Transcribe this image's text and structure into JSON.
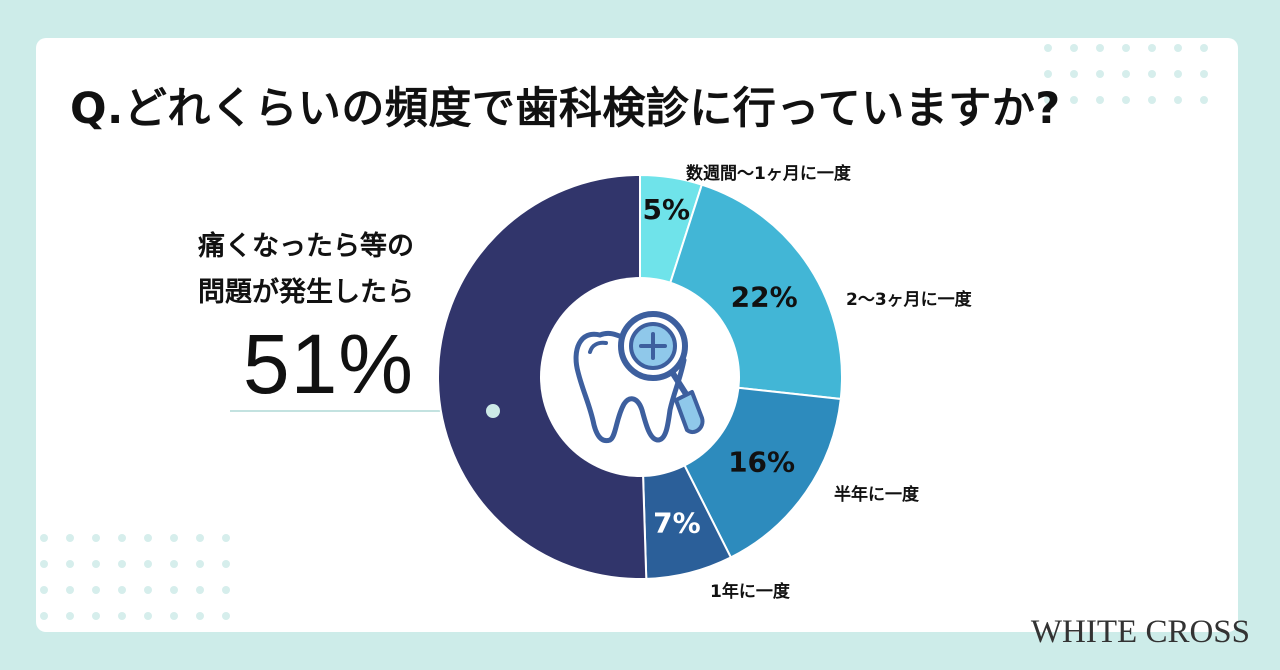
{
  "title": "Q.どれくらいの頻度で歯科検診に行っていますか?",
  "callout": {
    "line1": "痛くなったら等の",
    "line2": "問題が発生したら",
    "value": "51%"
  },
  "logo": "WHITE CROSS",
  "center_icon": "tooth-magnifier-icon",
  "colors": {
    "background": "#cdece9",
    "card": "#ffffff",
    "slice_dark": "#31356b",
    "slice_cyan": "#6fe3ea",
    "slice_light_blue": "#42b6d6",
    "slice_mid_blue": "#2d8bbd",
    "slice_navy_blue": "#2b5f99"
  },
  "chart_data": {
    "type": "pie",
    "title": "Q.どれくらいの頻度で歯科検診に行っていますか?",
    "slices": [
      {
        "label": "数週間〜1ヶ月に一度",
        "value": 5,
        "value_label": "5%",
        "color": "#6fe3ea",
        "text_color": "#111111"
      },
      {
        "label": "2〜3ヶ月に一度",
        "value": 22,
        "value_label": "22%",
        "color": "#42b6d6",
        "text_color": "#111111"
      },
      {
        "label": "半年に一度",
        "value": 16,
        "value_label": "16%",
        "color": "#2d8bbd",
        "text_color": "#111111"
      },
      {
        "label": "1年に一度",
        "value": 7,
        "value_label": "7%",
        "color": "#2b5f99",
        "text_color": "#ffffff"
      },
      {
        "label": "痛くなったら等の問題が発生したら",
        "value": 51,
        "value_label": "51%",
        "color": "#31356b",
        "text_color": "#ffffff"
      }
    ],
    "direction": "clockwise-from-top",
    "donut_hole": true
  }
}
